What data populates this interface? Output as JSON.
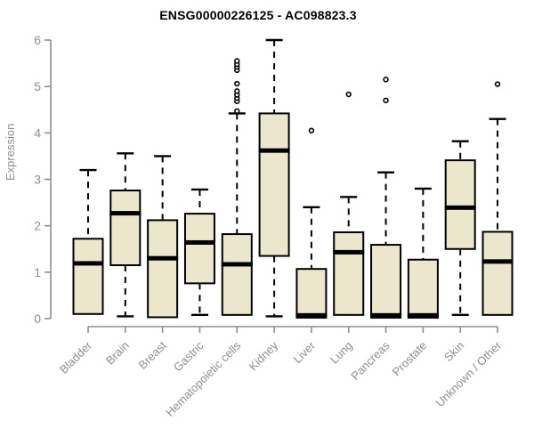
{
  "chart_data": {
    "type": "boxplot",
    "title": "ENSG00000226125 - AC098823.3",
    "ylabel": "Expression",
    "ylim": [
      0,
      6
    ],
    "yticks": [
      0,
      1,
      2,
      3,
      4,
      5,
      6
    ],
    "grid": false,
    "legend": "none",
    "colors": {
      "box_fill": "#ece7cc",
      "box_border": "#000000",
      "median": "#000000",
      "whisker": "#000000",
      "axis": "#8e8e8e",
      "tick_text": "#8e8e8e",
      "title_text": "#000000"
    },
    "series": [
      {
        "name": "Bladder",
        "whislo": 0.1,
        "q1": 0.1,
        "med": 1.19,
        "q3": 1.72,
        "whishi": 3.2,
        "outliers": []
      },
      {
        "name": "Brain",
        "whislo": 0.05,
        "q1": 1.15,
        "med": 2.27,
        "q3": 2.76,
        "whishi": 3.56,
        "outliers": []
      },
      {
        "name": "Breast",
        "whislo": 0.03,
        "q1": 0.03,
        "med": 1.3,
        "q3": 2.12,
        "whishi": 3.5,
        "outliers": []
      },
      {
        "name": "Gastric",
        "whislo": 0.08,
        "q1": 0.76,
        "med": 1.64,
        "q3": 2.26,
        "whishi": 2.78,
        "outliers": []
      },
      {
        "name": "Hematopoietic cells",
        "whislo": 0.08,
        "q1": 0.08,
        "med": 1.17,
        "q3": 1.82,
        "whishi": 4.42,
        "outliers": [
          4.47,
          4.68,
          4.75,
          4.82,
          4.9,
          5.06,
          5.35,
          5.42,
          5.48,
          5.55
        ]
      },
      {
        "name": "Kidney",
        "whislo": 0.05,
        "q1": 1.35,
        "med": 3.62,
        "q3": 4.42,
        "whishi": 6.0,
        "outliers": []
      },
      {
        "name": "Liver",
        "whislo": 0.02,
        "q1": 0.02,
        "med": 0.07,
        "q3": 1.07,
        "whishi": 2.4,
        "outliers": [
          4.05
        ]
      },
      {
        "name": "Lung",
        "whislo": 0.08,
        "q1": 0.08,
        "med": 1.43,
        "q3": 1.86,
        "whishi": 2.62,
        "outliers": [
          4.83
        ]
      },
      {
        "name": "Pancreas",
        "whislo": 0.02,
        "q1": 0.02,
        "med": 0.07,
        "q3": 1.59,
        "whishi": 3.15,
        "outliers": [
          4.7,
          5.15
        ]
      },
      {
        "name": "Prostate",
        "whislo": 0.02,
        "q1": 0.02,
        "med": 0.07,
        "q3": 1.27,
        "whishi": 2.8,
        "outliers": []
      },
      {
        "name": "Skin",
        "whislo": 0.08,
        "q1": 1.5,
        "med": 2.39,
        "q3": 3.41,
        "whishi": 3.82,
        "outliers": []
      },
      {
        "name": "Unknown / Other",
        "whislo": 0.08,
        "q1": 0.08,
        "med": 1.23,
        "q3": 1.87,
        "whishi": 4.3,
        "outliers": [
          5.05
        ]
      }
    ]
  }
}
